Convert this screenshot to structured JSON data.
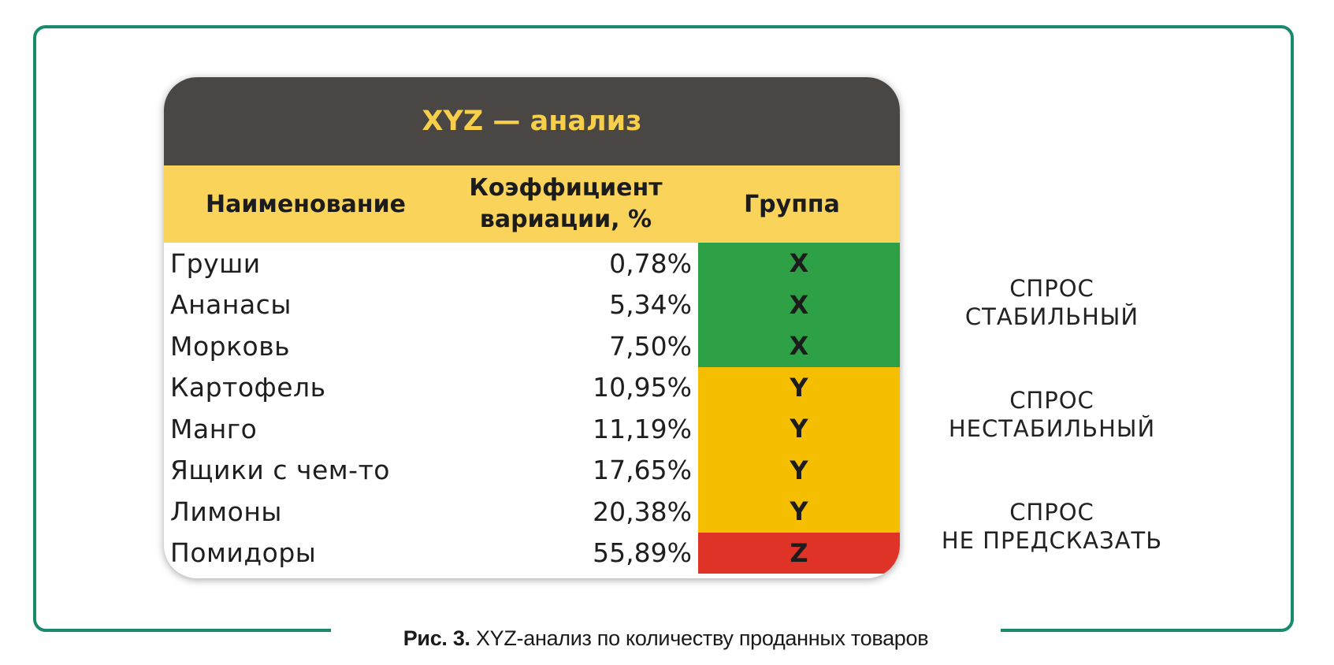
{
  "card": {
    "title": "XYZ — анализ",
    "headers": {
      "name": "Наименование",
      "coef_line1": "Коэффициент",
      "coef_line2": "вариации, %",
      "group": "Группа"
    },
    "rows": [
      {
        "name": "Груши",
        "coef": "0,78%",
        "group": "X"
      },
      {
        "name": "Ананасы",
        "coef": "5,34%",
        "group": "X"
      },
      {
        "name": "Морковь",
        "coef": "7,50%",
        "group": "X"
      },
      {
        "name": "Картофель",
        "coef": "10,95%",
        "group": "Y"
      },
      {
        "name": "Манго",
        "coef": "11,19%",
        "group": "Y"
      },
      {
        "name": "Ящики с чем-то",
        "coef": "17,65%",
        "group": "Y"
      },
      {
        "name": "Лимоны",
        "coef": "20,38%",
        "group": "Y"
      },
      {
        "name": "Помидоры",
        "coef": "55,89%",
        "group": "Z"
      }
    ]
  },
  "notes": {
    "x_line1": "СПРОС",
    "x_line2": "СТАБИЛЬНЫЙ",
    "y_line1": "СПРОС",
    "y_line2": "НЕСТАБИЛЬНЫЙ",
    "z_line1": "СПРОС",
    "z_line2": "НЕ ПРЕДСКАЗАТЬ"
  },
  "caption": {
    "label": "Рис. 3.",
    "text": "XYZ-анализ по количеству проданных товаров"
  },
  "colors": {
    "frame": "#1a8a6c",
    "title_bg": "#4a4643",
    "title_text": "#f7cf4b",
    "header_bg": "#fad35b",
    "group_x": "#2ea046",
    "group_y": "#f5be00",
    "group_z": "#e03328"
  }
}
